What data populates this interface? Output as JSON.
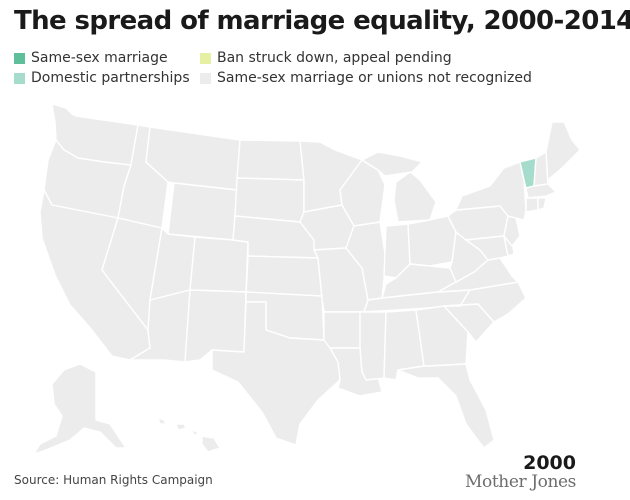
{
  "title": "The spread of marriage equality, 2000-2014",
  "legend": [
    {
      "label": "Same-sex marriage",
      "color": "#5fbf9a"
    },
    {
      "label": "Domestic partnerships",
      "color": "#a6dccb"
    },
    {
      "label": "Ban struck down, appeal pending",
      "color": "#e6f0a3"
    },
    {
      "label": "Same-sex marriage or unions not recognized",
      "color": "#ececec"
    }
  ],
  "map": {
    "default_color": "#ececec",
    "highlighted": [
      {
        "state": "Vermont",
        "status": "Domestic partnerships"
      }
    ]
  },
  "year": "2000",
  "source": "Source: Human Rights Campaign",
  "logo_text": "Mother Jones"
}
